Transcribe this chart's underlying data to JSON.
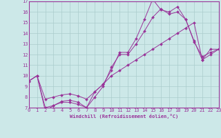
{
  "background_color": "#cce8e8",
  "grid_color": "#aacccc",
  "line_color": "#993399",
  "tick_color": "#993399",
  "label_color": "#993399",
  "spine_color": "#993399",
  "marker": "D",
  "marker_size": 2.0,
  "line_width": 0.7,
  "xlabel": "Windchill (Refroidissement éolien,°C)",
  "xlim": [
    0,
    23
  ],
  "ylim": [
    7,
    17
  ],
  "xticks": [
    0,
    1,
    2,
    3,
    4,
    5,
    6,
    7,
    8,
    9,
    10,
    11,
    12,
    13,
    14,
    15,
    16,
    17,
    18,
    19,
    20,
    21,
    22,
    23
  ],
  "yticks": [
    7,
    8,
    9,
    10,
    11,
    12,
    13,
    14,
    15,
    16,
    17
  ],
  "series": [
    {
      "x": [
        0,
        1,
        2,
        3,
        4,
        5,
        6,
        7,
        8,
        9,
        10,
        11,
        12,
        13,
        14,
        15,
        16,
        17,
        18,
        19,
        20,
        21,
        22,
        23
      ],
      "y": [
        9.5,
        10.0,
        6.7,
        7.2,
        7.5,
        7.5,
        7.3,
        7.0,
        8.5,
        9.2,
        10.5,
        12.2,
        12.2,
        13.5,
        15.3,
        17.2,
        16.2,
        16.0,
        16.5,
        15.3,
        13.3,
        11.5,
        12.5,
        12.5
      ]
    },
    {
      "x": [
        0,
        1,
        2,
        3,
        4,
        5,
        6,
        7,
        8,
        9,
        10,
        11,
        12,
        13,
        14,
        15,
        16,
        17,
        18,
        19,
        20,
        21,
        22,
        23
      ],
      "y": [
        9.5,
        10.0,
        7.0,
        7.2,
        7.6,
        7.7,
        7.5,
        7.0,
        8.0,
        9.0,
        10.8,
        12.0,
        12.0,
        13.0,
        14.2,
        15.5,
        16.3,
        15.8,
        16.0,
        15.3,
        13.2,
        11.8,
        12.2,
        12.5
      ]
    },
    {
      "x": [
        0,
        1,
        2,
        3,
        4,
        5,
        6,
        7,
        8,
        9,
        10,
        11,
        12,
        13,
        14,
        15,
        16,
        17,
        18,
        19,
        20,
        21,
        22,
        23
      ],
      "y": [
        9.5,
        10.0,
        7.8,
        8.0,
        8.2,
        8.3,
        8.1,
        7.8,
        8.5,
        9.2,
        10.0,
        10.5,
        11.0,
        11.5,
        12.0,
        12.5,
        13.0,
        13.5,
        14.0,
        14.5,
        15.0,
        11.5,
        12.0,
        12.5
      ]
    }
  ]
}
